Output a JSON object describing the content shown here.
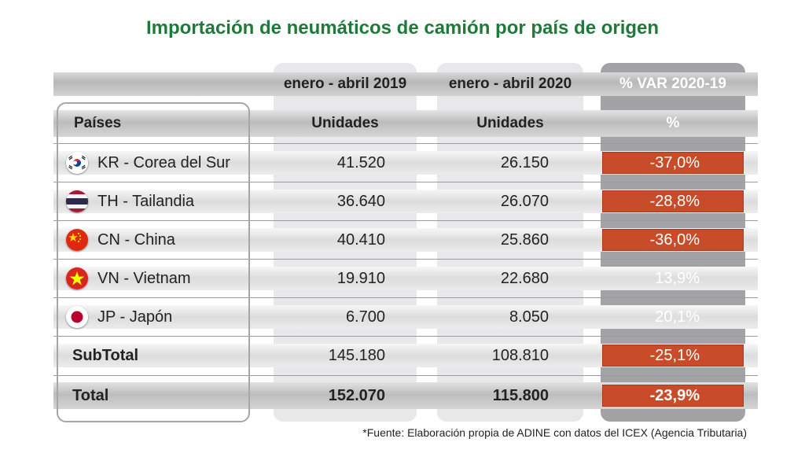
{
  "title": "Importación de neumáticos de camión por país de origen",
  "colors": {
    "title": "#1f7a3a",
    "negative_cell": "#c84c2a",
    "var_column": "#a3a3a6",
    "period_columns": "#e8e8ea"
  },
  "headers": {
    "periods": [
      "enero - abril  2019",
      "enero - abril  2020",
      "% VAR 2020-19"
    ],
    "row_label": "Países",
    "units": [
      "Unidades",
      "Unidades",
      "%"
    ]
  },
  "rows": [
    {
      "country": "KR - Corea del Sur",
      "flag": "south-korea-flag-icon",
      "y2019": "41.520",
      "y2020": "26.150",
      "var": "-37,0%"
    },
    {
      "country": "TH - Tailandia",
      "flag": "thailand-flag-icon",
      "y2019": "36.640",
      "y2020": "26.070",
      "var": "-28,8%"
    },
    {
      "country": "CN - China",
      "flag": "china-flag-icon",
      "y2019": "40.410",
      "y2020": "25.860",
      "var": "-36,0%"
    },
    {
      "country": "VN - Vietnam",
      "flag": "vietnam-flag-icon",
      "y2019": "19.910",
      "y2020": "22.680",
      "var": "13,9%"
    },
    {
      "country": "JP - Japón",
      "flag": "japan-flag-icon",
      "y2019": "6.700",
      "y2020": "8.050",
      "var": "20,1%"
    }
  ],
  "subtotal": {
    "label": "SubTotal",
    "y2019": "145.180",
    "y2020": "108.810",
    "var": "-25,1%"
  },
  "total": {
    "label": "Total",
    "y2019": "152.070",
    "y2020": "115.800",
    "var": "-23,9%"
  },
  "footnote": "*Fuente: Elaboración propia de ADINE con datos del ICEX (Agencia Tributaria)",
  "chart_data": {
    "type": "table",
    "title": "Importación de neumáticos de camión por país de origen",
    "columns": [
      "Países",
      "enero - abril  2019 (Unidades)",
      "enero - abril  2020 (Unidades)",
      "% VAR 2020-19 (%)"
    ],
    "categories": [
      "KR - Corea del Sur",
      "TH - Tailandia",
      "CN - China",
      "VN - Vietnam",
      "JP - Japón",
      "SubTotal",
      "Total"
    ],
    "series": [
      {
        "name": "enero - abril  2019",
        "values": [
          41520,
          36640,
          40410,
          19910,
          6700,
          145180,
          152070
        ]
      },
      {
        "name": "enero - abril  2020",
        "values": [
          26150,
          26070,
          25860,
          22680,
          8050,
          108810,
          115800
        ]
      },
      {
        "name": "% VAR 2020-19",
        "values": [
          -37.0,
          -28.8,
          -36.0,
          13.9,
          20.1,
          -25.1,
          -23.9
        ]
      }
    ]
  }
}
